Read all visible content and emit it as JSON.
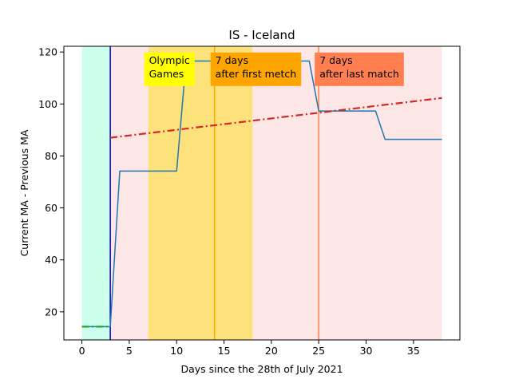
{
  "chart_data": {
    "type": "line",
    "title": "IS - Iceland",
    "xlabel": "Days since the 28th of July 2021",
    "ylabel": "Current MA - Previous MA",
    "xlim": [
      -1.9,
      39.9
    ],
    "ylim": [
      9.2,
      122.2
    ],
    "xticks": [
      0,
      5,
      10,
      15,
      20,
      25,
      30,
      35
    ],
    "yticks": [
      20,
      40,
      60,
      80,
      100,
      120
    ],
    "grid": false,
    "legend": "none",
    "shaded_regions": [
      {
        "x_start": 0,
        "x_end": 3,
        "color": "#ccffeb"
      },
      {
        "x_start": 3,
        "x_end": 38,
        "color": "#fde6e6"
      },
      {
        "x_start": 7,
        "x_end": 18,
        "color": "#fde27c"
      }
    ],
    "vertical_lines": [
      {
        "x": 3,
        "color": "#0000c8"
      },
      {
        "x": 14,
        "color": "#ffa500"
      },
      {
        "x": 25,
        "color": "#ff7f50"
      }
    ],
    "annotations": [
      {
        "text": "Olympic\nGames",
        "x": 7,
        "y": 119.5,
        "bg": "#ffff00"
      },
      {
        "text": "7 days\nafter first metch",
        "x": 14,
        "y": 119.5,
        "bg": "#ffa500"
      },
      {
        "text": "7 days\nafter last match",
        "x": 25,
        "y": 119.5,
        "bg": "#ff7f50"
      }
    ],
    "series": [
      {
        "kind": "main",
        "color": "#1f77b4",
        "style": "solid",
        "x": [
          0,
          1,
          2,
          3,
          4,
          5,
          6,
          7,
          8,
          9,
          10,
          11,
          12,
          13,
          14,
          15,
          16,
          17,
          18,
          19,
          20,
          21,
          22,
          23,
          24,
          25,
          26,
          27,
          28,
          29,
          30,
          31,
          32,
          33,
          34,
          35,
          36,
          37,
          38
        ],
        "values": [
          14.3,
          14.3,
          14.3,
          14.3,
          74.2,
          74.2,
          74.2,
          74.2,
          74.2,
          74.2,
          74.2,
          116.5,
          116.5,
          116.5,
          116.5,
          116.5,
          116.5,
          116.5,
          116.5,
          116.5,
          116.5,
          116.5,
          116.5,
          116.5,
          116.5,
          97.3,
          97.3,
          97.3,
          97.3,
          97.3,
          97.3,
          97.3,
          86.4,
          86.4,
          86.4,
          86.4,
          86.4,
          86.4,
          86.4
        ]
      },
      {
        "kind": "pre-trend",
        "color": "#2ca02c",
        "style": "dashdot",
        "x": [
          0,
          3
        ],
        "values": [
          14.3,
          14.3
        ]
      },
      {
        "kind": "post-trend",
        "color": "#d62728",
        "style": "dashdot",
        "x": [
          3,
          38
        ],
        "values": [
          87.0,
          102.3
        ]
      }
    ]
  }
}
